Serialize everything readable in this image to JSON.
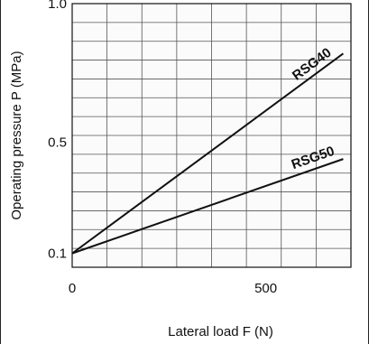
{
  "chart_data": {
    "type": "line",
    "xlabel": "Lateral load F (N)",
    "ylabel": "Operating pressure P (MPa)",
    "xlim": [
      0,
      720
    ],
    "ylim": [
      0.05,
      1.0
    ],
    "x_ticks": [
      {
        "value": 0,
        "label": "0"
      },
      {
        "value": 500,
        "label": "500"
      }
    ],
    "y_ticks": [
      {
        "value": 0.1,
        "label": "0.1"
      },
      {
        "value": 0.5,
        "label": "0.5"
      },
      {
        "value": 1.0,
        "label": "1.0"
      }
    ],
    "grid": true,
    "grid_color": "#d9d9d9",
    "line_color": "#111111",
    "series": [
      {
        "name": "RSG40",
        "x": [
          0,
          700
        ],
        "y": [
          0.1,
          0.82
        ]
      },
      {
        "name": "RSG50",
        "x": [
          0,
          700
        ],
        "y": [
          0.1,
          0.44
        ]
      }
    ]
  }
}
